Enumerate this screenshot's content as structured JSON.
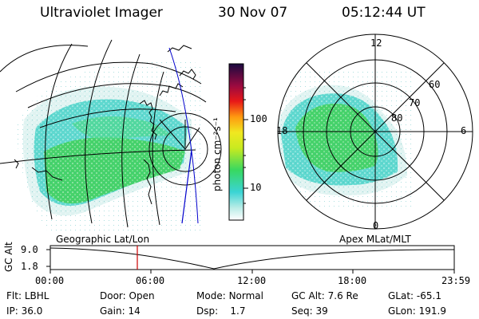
{
  "header": {
    "instrument": "Ultraviolet Imager",
    "date": "30 Nov 07",
    "time": "05:12:44 UT"
  },
  "colorbar": {
    "unit_label": "photon cm⁻²s⁻¹",
    "ticks": [
      "100",
      "10"
    ]
  },
  "geo_panel": {
    "label": "Geographic Lat/Lon"
  },
  "polar_panel": {
    "label": "Apex MLat/MLT",
    "mlt_labels": {
      "top": "12",
      "right": "6",
      "bottom": "0",
      "left": "18"
    },
    "lat_labels": [
      "60",
      "70",
      "80"
    ]
  },
  "altitude_plot": {
    "ylabel": "GC Alt",
    "yticks": [
      "9.0",
      "1.8"
    ],
    "xticks": [
      "00:00",
      "06:00",
      "12:00",
      "18:00",
      "23:59"
    ]
  },
  "info": {
    "row1": [
      {
        "key": "Flt:",
        "value": "LBHL"
      },
      {
        "key": "Door:",
        "value": "Open"
      },
      {
        "key": "Mode:",
        "value": "Normal"
      },
      {
        "key": "GC Alt:",
        "value": "7.6 Re"
      },
      {
        "key": "GLat:",
        "value": "-65.1"
      }
    ],
    "row2": [
      {
        "key": "IP:",
        "value": "36.0"
      },
      {
        "key": "Gain:",
        "value": "14"
      },
      {
        "key": "Dsp:",
        "value": "1.7"
      },
      {
        "key": "Seq:",
        "value": "39"
      },
      {
        "key": "GLon:",
        "value": "191.9"
      }
    ]
  }
}
